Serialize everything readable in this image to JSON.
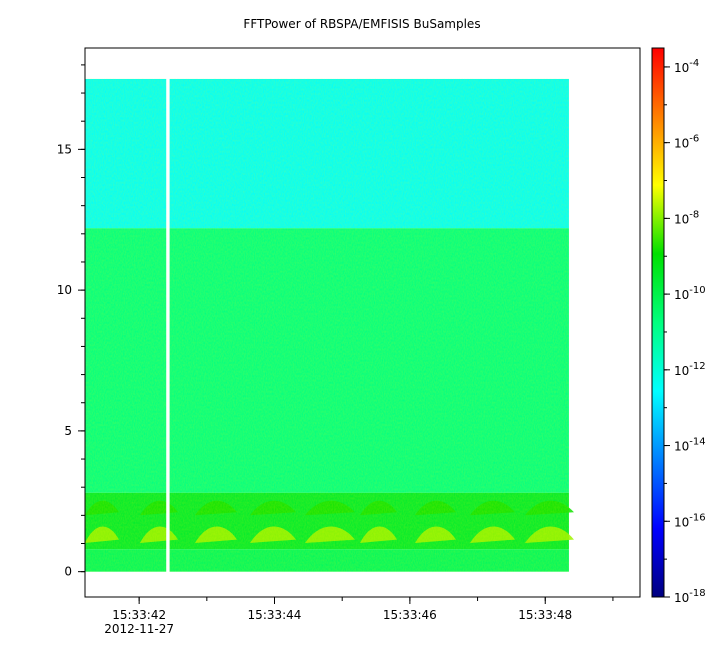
{
  "chart_data": {
    "type": "heatmap",
    "title": "FFTPower of RBSPA/EMFISIS  BuSamples",
    "xlabel": "",
    "ylabel": "",
    "x_ticks": [
      {
        "t": 42,
        "label": "15:33:42"
      },
      {
        "t": 44,
        "label": "15:33:44"
      },
      {
        "t": 46,
        "label": "15:33:46"
      },
      {
        "t": 48,
        "label": "15:33:48"
      }
    ],
    "x_date_label": "2012-11-27",
    "xlim": [
      41.2,
      49.4
    ],
    "data_xrange": [
      41.2,
      48.35
    ],
    "gap": [
      42.4,
      42.45
    ],
    "y_ticks": [
      0,
      5,
      10,
      15
    ],
    "ylim": [
      -0.9,
      18.6
    ],
    "data_yrange": [
      0,
      17.5
    ],
    "colorbar": {
      "scale": "log",
      "range_exp": [
        -18,
        -3.5
      ],
      "ticks": [
        {
          "exp": -4,
          "base": "10",
          "sup": "-4"
        },
        {
          "exp": -6,
          "base": "10",
          "sup": "-6"
        },
        {
          "exp": -8,
          "base": "10",
          "sup": "-8"
        },
        {
          "exp": -10,
          "base": "10",
          "sup": "-10"
        },
        {
          "exp": -12,
          "base": "10",
          "sup": "-12"
        },
        {
          "exp": -14,
          "base": "10",
          "sup": "-14"
        },
        {
          "exp": -16,
          "base": "10",
          "sup": "-16"
        },
        {
          "exp": -18,
          "base": "10",
          "sup": "-18"
        }
      ]
    },
    "regions": [
      {
        "y": [
          12.2,
          17.5
        ],
        "exp": -12.5
      },
      {
        "y": [
          2.8,
          12.2
        ],
        "exp": -10.8
      },
      {
        "y": [
          0.8,
          2.8
        ],
        "exp": -9.6
      },
      {
        "y": [
          0,
          0.8
        ],
        "exp": -10.3
      }
    ],
    "features": [
      {
        "kind": "band",
        "y": [
          1.9,
          2.6
        ],
        "exp": -8.8
      },
      {
        "kind": "band",
        "y": [
          0.9,
          1.7
        ],
        "exp": -7.8
      }
    ]
  }
}
